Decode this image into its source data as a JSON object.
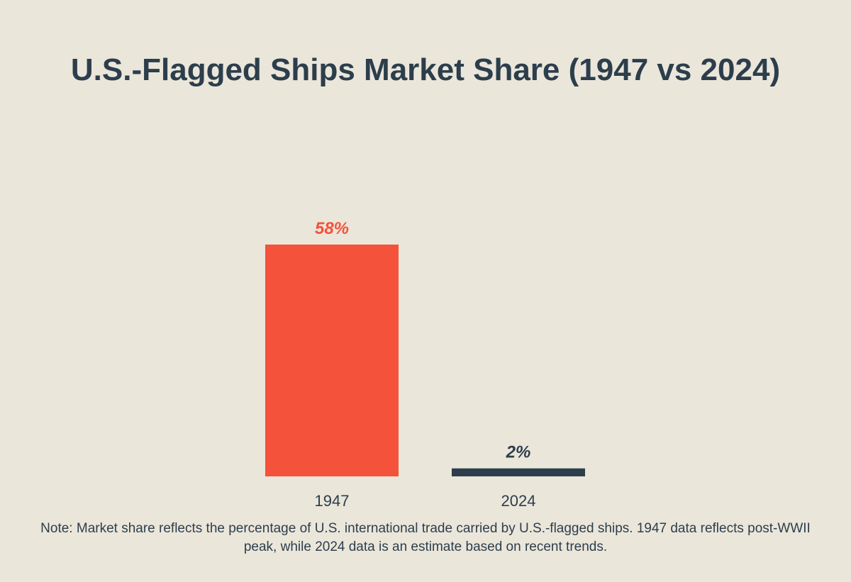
{
  "title": "U.S.-Flagged Ships Market Share (1947 vs 2024)",
  "note": "Note: Market share reflects the percentage of U.S. international trade carried by U.S.-flagged ships. 1947 data reflects post-WWII peak, while 2024 data is an estimate based on recent trends.",
  "colors": {
    "background": "#ebe6da",
    "text": "#2c3e4c",
    "bar_1947": "#f4523b",
    "bar_2024": "#2c3e4c"
  },
  "chart_data": {
    "type": "bar",
    "categories": [
      "1947",
      "2024"
    ],
    "values": [
      58,
      2
    ],
    "data_labels": [
      "58%",
      "2%"
    ],
    "unit": "%",
    "title": "U.S.-Flagged Ships Market Share (1947 vs 2024)",
    "xlabel": "",
    "ylabel": "",
    "ylim": [
      0,
      58
    ],
    "grid": false,
    "legend": "none"
  }
}
